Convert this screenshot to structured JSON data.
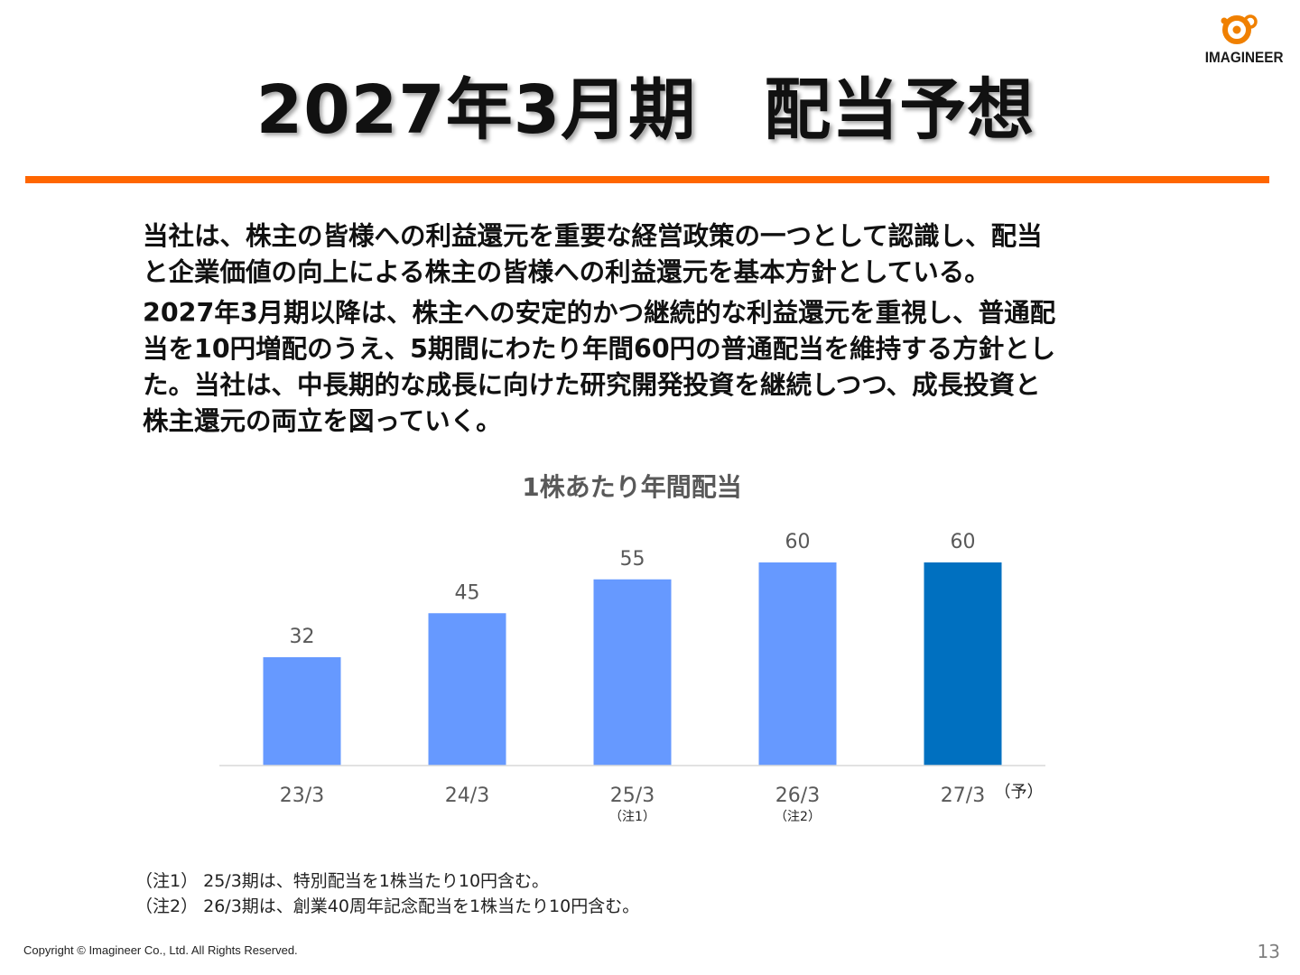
{
  "slide": {
    "title": "2027年3月期　配当予想",
    "logo_text": "IMAGINEER",
    "accent_color": "#ff6600"
  },
  "body": {
    "paragraph1": [
      "当社は、株主の皆様への利益還元を重要な経営政策の一つとして認識し、配当",
      "と企業価値の向上による株主の皆様への利益還元を基本方針としている。"
    ],
    "paragraph2": [
      "2027年3月期以降は、株主への安定的かつ継続的な利益還元を重視し、普通配",
      "当を10円増配のうえ、5期間にわたり年間60円の普通配当を維持する方針とし",
      "た。当社は、中長期的な成長に向けた研究開発投資を継続しつつ、成長投資と",
      "株主還元の両立を図っていく。"
    ]
  },
  "chart_data": {
    "type": "bar",
    "title": "1株あたり年間配当",
    "categories": [
      "23/3",
      "24/3",
      "25/3",
      "26/3",
      "27/3"
    ],
    "values": [
      32,
      45,
      55,
      60,
      60
    ],
    "category_notes": [
      "",
      "",
      "（注1）",
      "（注2）",
      "（予）"
    ],
    "bar_colors": [
      "#6699ff",
      "#6699ff",
      "#6699ff",
      "#6699ff",
      "#0070c0"
    ],
    "ylim": [
      0,
      70
    ],
    "data_labels": true,
    "gridlines": false,
    "legend": false
  },
  "footnotes": [
    "（注1） 25/3期は、特別配当を1株当たり10円含む。",
    "（注2） 26/3期は、創業40周年記念配当を1株当たり10円含む。"
  ],
  "footer": {
    "copyright": "Copyright ©  Imagineer Co., Ltd. All Rights Reserved.",
    "page_number": "13"
  }
}
